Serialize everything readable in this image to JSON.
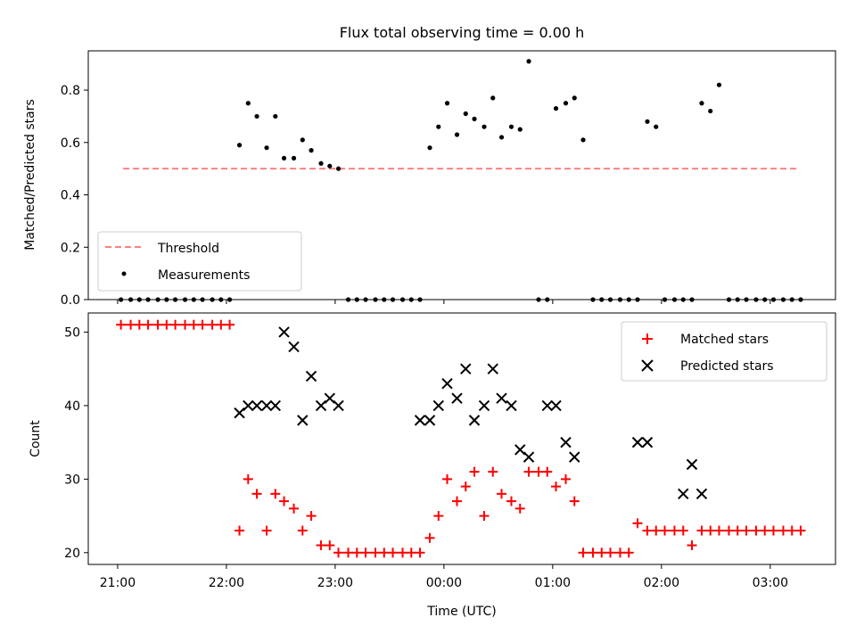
{
  "figure": {
    "title": "Flux total observing time = 0.00 h"
  },
  "chart_data": [
    {
      "type": "scatter",
      "ylabel": "Matched/Predicted stars",
      "ylim": [
        0,
        0.95
      ],
      "yticks": [
        "0.0",
        "0.2",
        "0.4",
        "0.6",
        "0.8"
      ],
      "xlim": [
        20.73,
        27.6
      ],
      "grid": false,
      "legend_position": "lower-left",
      "threshold": {
        "name": "Threshold",
        "value": 0.5,
        "x_range": [
          21.05,
          27.25
        ],
        "color": "#ff8080"
      },
      "series": [
        {
          "name": "Measurements",
          "color": "#000000",
          "x": [
            21.03,
            21.12,
            21.2,
            21.28,
            21.37,
            21.45,
            21.53,
            21.62,
            21.7,
            21.78,
            21.87,
            21.95,
            22.03,
            22.12,
            22.2,
            22.28,
            22.37,
            22.45,
            22.53,
            22.62,
            22.7,
            22.78,
            22.87,
            22.95,
            23.03,
            23.12,
            23.2,
            23.28,
            23.37,
            23.45,
            23.53,
            23.62,
            23.7,
            23.78,
            23.87,
            23.95,
            24.03,
            24.12,
            24.2,
            24.28,
            24.37,
            24.45,
            24.53,
            24.62,
            24.7,
            24.78,
            24.87,
            24.95,
            25.03,
            25.12,
            25.2,
            25.28,
            25.37,
            25.45,
            25.53,
            25.62,
            25.7,
            25.78,
            25.87,
            25.95,
            26.03,
            26.12,
            26.2,
            26.28,
            26.37,
            26.45,
            26.53,
            26.62,
            26.7,
            26.78,
            26.87,
            26.95,
            27.03,
            27.12,
            27.2,
            27.28
          ],
          "y": [
            0,
            0,
            0,
            0,
            0,
            0,
            0,
            0,
            0,
            0,
            0,
            0,
            0,
            0.59,
            0.75,
            0.7,
            0.58,
            0.7,
            0.54,
            0.54,
            0.61,
            0.57,
            0.52,
            0.51,
            0.5,
            0,
            0,
            0,
            0,
            0,
            0,
            0,
            0,
            0,
            0.58,
            0.66,
            0.75,
            0.63,
            0.71,
            0.69,
            0.66,
            0.77,
            0.62,
            0.66,
            0.65,
            0.91,
            0,
            0,
            0.73,
            0.75,
            0.77,
            0.61,
            0,
            0,
            0,
            0,
            0,
            0,
            0.68,
            0.66,
            0,
            0,
            0,
            0,
            0.75,
            0.72,
            0.82,
            0,
            0,
            0,
            0,
            0,
            0,
            0,
            0,
            0
          ]
        }
      ]
    },
    {
      "type": "scatter",
      "xlabel": "Time (UTC)",
      "ylabel": "Count",
      "ylim": [
        18.4,
        52.6
      ],
      "yticks": [
        "20",
        "30",
        "40",
        "50"
      ],
      "xlim": [
        20.73,
        27.6
      ],
      "xticks": [
        {
          "value": 21,
          "label": "21:00"
        },
        {
          "value": 22,
          "label": "22:00"
        },
        {
          "value": 23,
          "label": "23:00"
        },
        {
          "value": 24,
          "label": "00:00"
        },
        {
          "value": 25,
          "label": "01:00"
        },
        {
          "value": 26,
          "label": "02:00"
        },
        {
          "value": 27,
          "label": "03:00"
        }
      ],
      "grid": false,
      "legend_position": "upper-right",
      "series": [
        {
          "name": "Matched stars",
          "marker": "plus",
          "color": "#ff0000",
          "x": [
            21.03,
            21.12,
            21.2,
            21.28,
            21.37,
            21.45,
            21.53,
            21.62,
            21.7,
            21.78,
            21.87,
            21.95,
            22.03,
            22.12,
            22.2,
            22.28,
            22.37,
            22.45,
            22.53,
            22.62,
            22.7,
            22.78,
            22.87,
            22.95,
            23.03,
            23.12,
            23.2,
            23.28,
            23.37,
            23.45,
            23.53,
            23.62,
            23.7,
            23.78,
            23.87,
            23.95,
            24.03,
            24.12,
            24.2,
            24.28,
            24.37,
            24.45,
            24.53,
            24.62,
            24.7,
            24.78,
            24.87,
            24.95,
            25.03,
            25.12,
            25.2,
            25.28,
            25.37,
            25.45,
            25.53,
            25.62,
            25.7,
            25.78,
            25.87,
            25.95,
            26.03,
            26.12,
            26.2,
            26.28,
            26.37,
            26.45,
            26.53,
            26.62,
            26.7,
            26.78,
            26.87,
            26.95,
            27.03,
            27.12,
            27.2,
            27.28
          ],
          "y": [
            51,
            51,
            51,
            51,
            51,
            51,
            51,
            51,
            51,
            51,
            51,
            51,
            51,
            23,
            30,
            28,
            23,
            28,
            27,
            26,
            23,
            25,
            21,
            21,
            20,
            20,
            20,
            20,
            20,
            20,
            20,
            20,
            20,
            20,
            22,
            25,
            30,
            27,
            29,
            31,
            25,
            31,
            28,
            27,
            26,
            31,
            31,
            31,
            29,
            30,
            27,
            20,
            20,
            20,
            20,
            20,
            20,
            24,
            23,
            23,
            23,
            23,
            23,
            21,
            23,
            23,
            23,
            23,
            23,
            23,
            23,
            23,
            23,
            23,
            23,
            23
          ]
        },
        {
          "name": "Predicted stars",
          "marker": "x",
          "color": "#000000",
          "x": [
            22.12,
            22.2,
            22.28,
            22.37,
            22.45,
            22.53,
            22.62,
            22.7,
            22.78,
            22.87,
            22.95,
            23.03,
            23.78,
            23.87,
            23.95,
            24.03,
            24.12,
            24.2,
            24.28,
            24.37,
            24.45,
            24.53,
            24.62,
            24.7,
            24.78,
            24.95,
            25.03,
            25.12,
            25.2,
            25.78,
            25.87,
            26.2,
            26.28,
            26.37
          ],
          "y": [
            39,
            40,
            40,
            40,
            40,
            50,
            48,
            38,
            44,
            40,
            41,
            40,
            38,
            38,
            40,
            43,
            41,
            45,
            38,
            40,
            45,
            41,
            40,
            34,
            33,
            40,
            40,
            35,
            33,
            35,
            35,
            28,
            32,
            28
          ]
        }
      ]
    }
  ]
}
